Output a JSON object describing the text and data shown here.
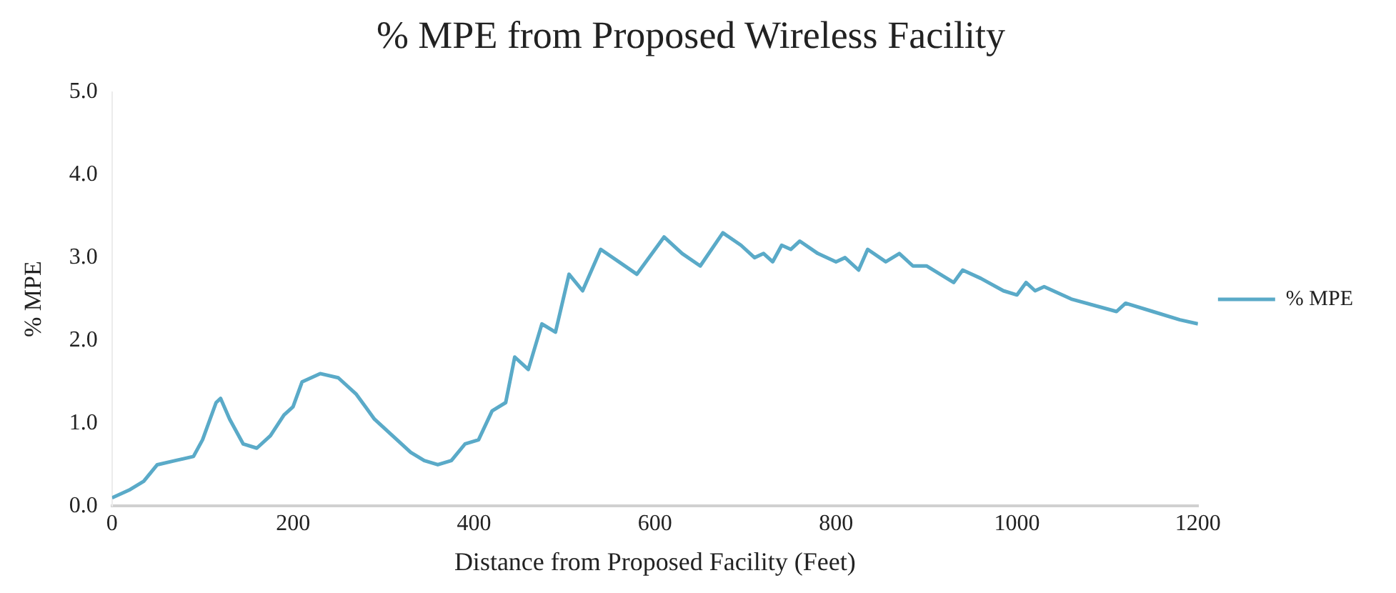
{
  "chart_data": {
    "type": "line",
    "title": "% MPE from Proposed Wireless Facility",
    "xlabel": "Distance from Proposed Facility (Feet)",
    "ylabel": "% MPE",
    "x": [
      0,
      20,
      35,
      50,
      70,
      90,
      100,
      115,
      120,
      130,
      145,
      160,
      175,
      190,
      200,
      210,
      230,
      250,
      270,
      290,
      310,
      330,
      345,
      360,
      375,
      390,
      405,
      420,
      435,
      445,
      460,
      475,
      490,
      505,
      520,
      540,
      560,
      580,
      610,
      630,
      650,
      675,
      695,
      710,
      720,
      730,
      740,
      750,
      760,
      780,
      800,
      810,
      825,
      835,
      855,
      870,
      885,
      900,
      930,
      940,
      960,
      985,
      1000,
      1010,
      1020,
      1030,
      1060,
      1110,
      1120,
      1150,
      1180,
      1200
    ],
    "series": [
      {
        "name": "% MPE",
        "color": "#5aaac8",
        "values": [
          0.1,
          0.2,
          0.3,
          0.5,
          0.55,
          0.6,
          0.8,
          1.25,
          1.3,
          1.05,
          0.75,
          0.7,
          0.85,
          1.1,
          1.2,
          1.5,
          1.6,
          1.55,
          1.35,
          1.05,
          0.85,
          0.65,
          0.55,
          0.5,
          0.55,
          0.75,
          0.8,
          1.15,
          1.25,
          1.8,
          1.65,
          2.2,
          2.1,
          2.8,
          2.6,
          3.1,
          2.95,
          2.8,
          3.25,
          3.05,
          2.9,
          3.3,
          3.15,
          3.0,
          3.05,
          2.95,
          3.15,
          3.1,
          3.2,
          3.05,
          2.95,
          3.0,
          2.85,
          3.1,
          2.95,
          3.05,
          2.9,
          2.9,
          2.7,
          2.85,
          2.75,
          2.6,
          2.55,
          2.7,
          2.6,
          2.65,
          2.5,
          2.35,
          2.45,
          2.35,
          2.25,
          2.2
        ]
      }
    ],
    "xlim": [
      0,
      1200
    ],
    "xticks": [
      0,
      200,
      400,
      600,
      800,
      1000,
      1200
    ],
    "ylim": [
      0,
      5
    ],
    "yticks": [
      {
        "value": 0,
        "label": "0.0"
      },
      {
        "value": 1,
        "label": "1.0"
      },
      {
        "value": 2,
        "label": "2.0"
      },
      {
        "value": 3,
        "label": "3.0"
      },
      {
        "value": 4,
        "label": "4.0"
      },
      {
        "value": 5,
        "label": "5.0"
      }
    ],
    "grid": false,
    "legend": "right",
    "marker": "none",
    "line_style": "solid"
  }
}
